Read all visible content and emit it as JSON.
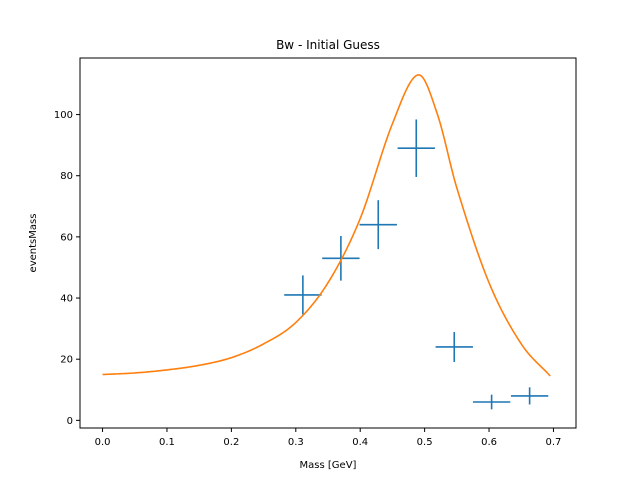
{
  "chart_data": {
    "type": "scatter",
    "title": "Bw - Initial Guess",
    "xlabel": "Mass [GeV]",
    "ylabel": "eventsMass",
    "xlim": [
      -0.035,
      0.735
    ],
    "ylim": [
      -2.5,
      118.5
    ],
    "grid": false,
    "x_ticks": [
      "0.0",
      "0.1",
      "0.2",
      "0.3",
      "0.4",
      "0.5",
      "0.6",
      "0.7"
    ],
    "x_tick_values": [
      0.0,
      0.1,
      0.2,
      0.3,
      0.4,
      0.5,
      0.6,
      0.7
    ],
    "y_ticks": [
      "0",
      "20",
      "40",
      "60",
      "80",
      "100"
    ],
    "y_tick_values": [
      0,
      20,
      40,
      60,
      80,
      100
    ],
    "series": [
      {
        "kind": "errorbar",
        "color": "#1f77b4",
        "points": [
          {
            "x": 0.311,
            "y": 41,
            "xerr": 0.029,
            "yerr": 6.4
          },
          {
            "x": 0.37,
            "y": 53,
            "xerr": 0.029,
            "yerr": 7.3
          },
          {
            "x": 0.428,
            "y": 64,
            "xerr": 0.029,
            "yerr": 8.0
          },
          {
            "x": 0.487,
            "y": 89,
            "xerr": 0.029,
            "yerr": 9.4
          },
          {
            "x": 0.546,
            "y": 24,
            "xerr": 0.029,
            "yerr": 4.9
          },
          {
            "x": 0.604,
            "y": 6,
            "xerr": 0.029,
            "yerr": 2.4
          },
          {
            "x": 0.663,
            "y": 8,
            "xerr": 0.029,
            "yerr": 2.8
          }
        ]
      },
      {
        "kind": "line",
        "color": "#ff7f0e",
        "model": "breit-wigner",
        "peak_x": 0.49,
        "peak_y": 113,
        "x_range": [
          0.0,
          0.695
        ],
        "points": [
          {
            "x": 0.0,
            "y": 15
          },
          {
            "x": 0.05,
            "y": 15.5
          },
          {
            "x": 0.1,
            "y": 16.5
          },
          {
            "x": 0.15,
            "y": 18
          },
          {
            "x": 0.2,
            "y": 20.5
          },
          {
            "x": 0.25,
            "y": 25
          },
          {
            "x": 0.3,
            "y": 32
          },
          {
            "x": 0.35,
            "y": 45
          },
          {
            "x": 0.4,
            "y": 66
          },
          {
            "x": 0.45,
            "y": 97
          },
          {
            "x": 0.49,
            "y": 113
          },
          {
            "x": 0.52,
            "y": 100
          },
          {
            "x": 0.55,
            "y": 76
          },
          {
            "x": 0.6,
            "y": 45
          },
          {
            "x": 0.65,
            "y": 25
          },
          {
            "x": 0.695,
            "y": 14.5
          }
        ]
      }
    ]
  }
}
